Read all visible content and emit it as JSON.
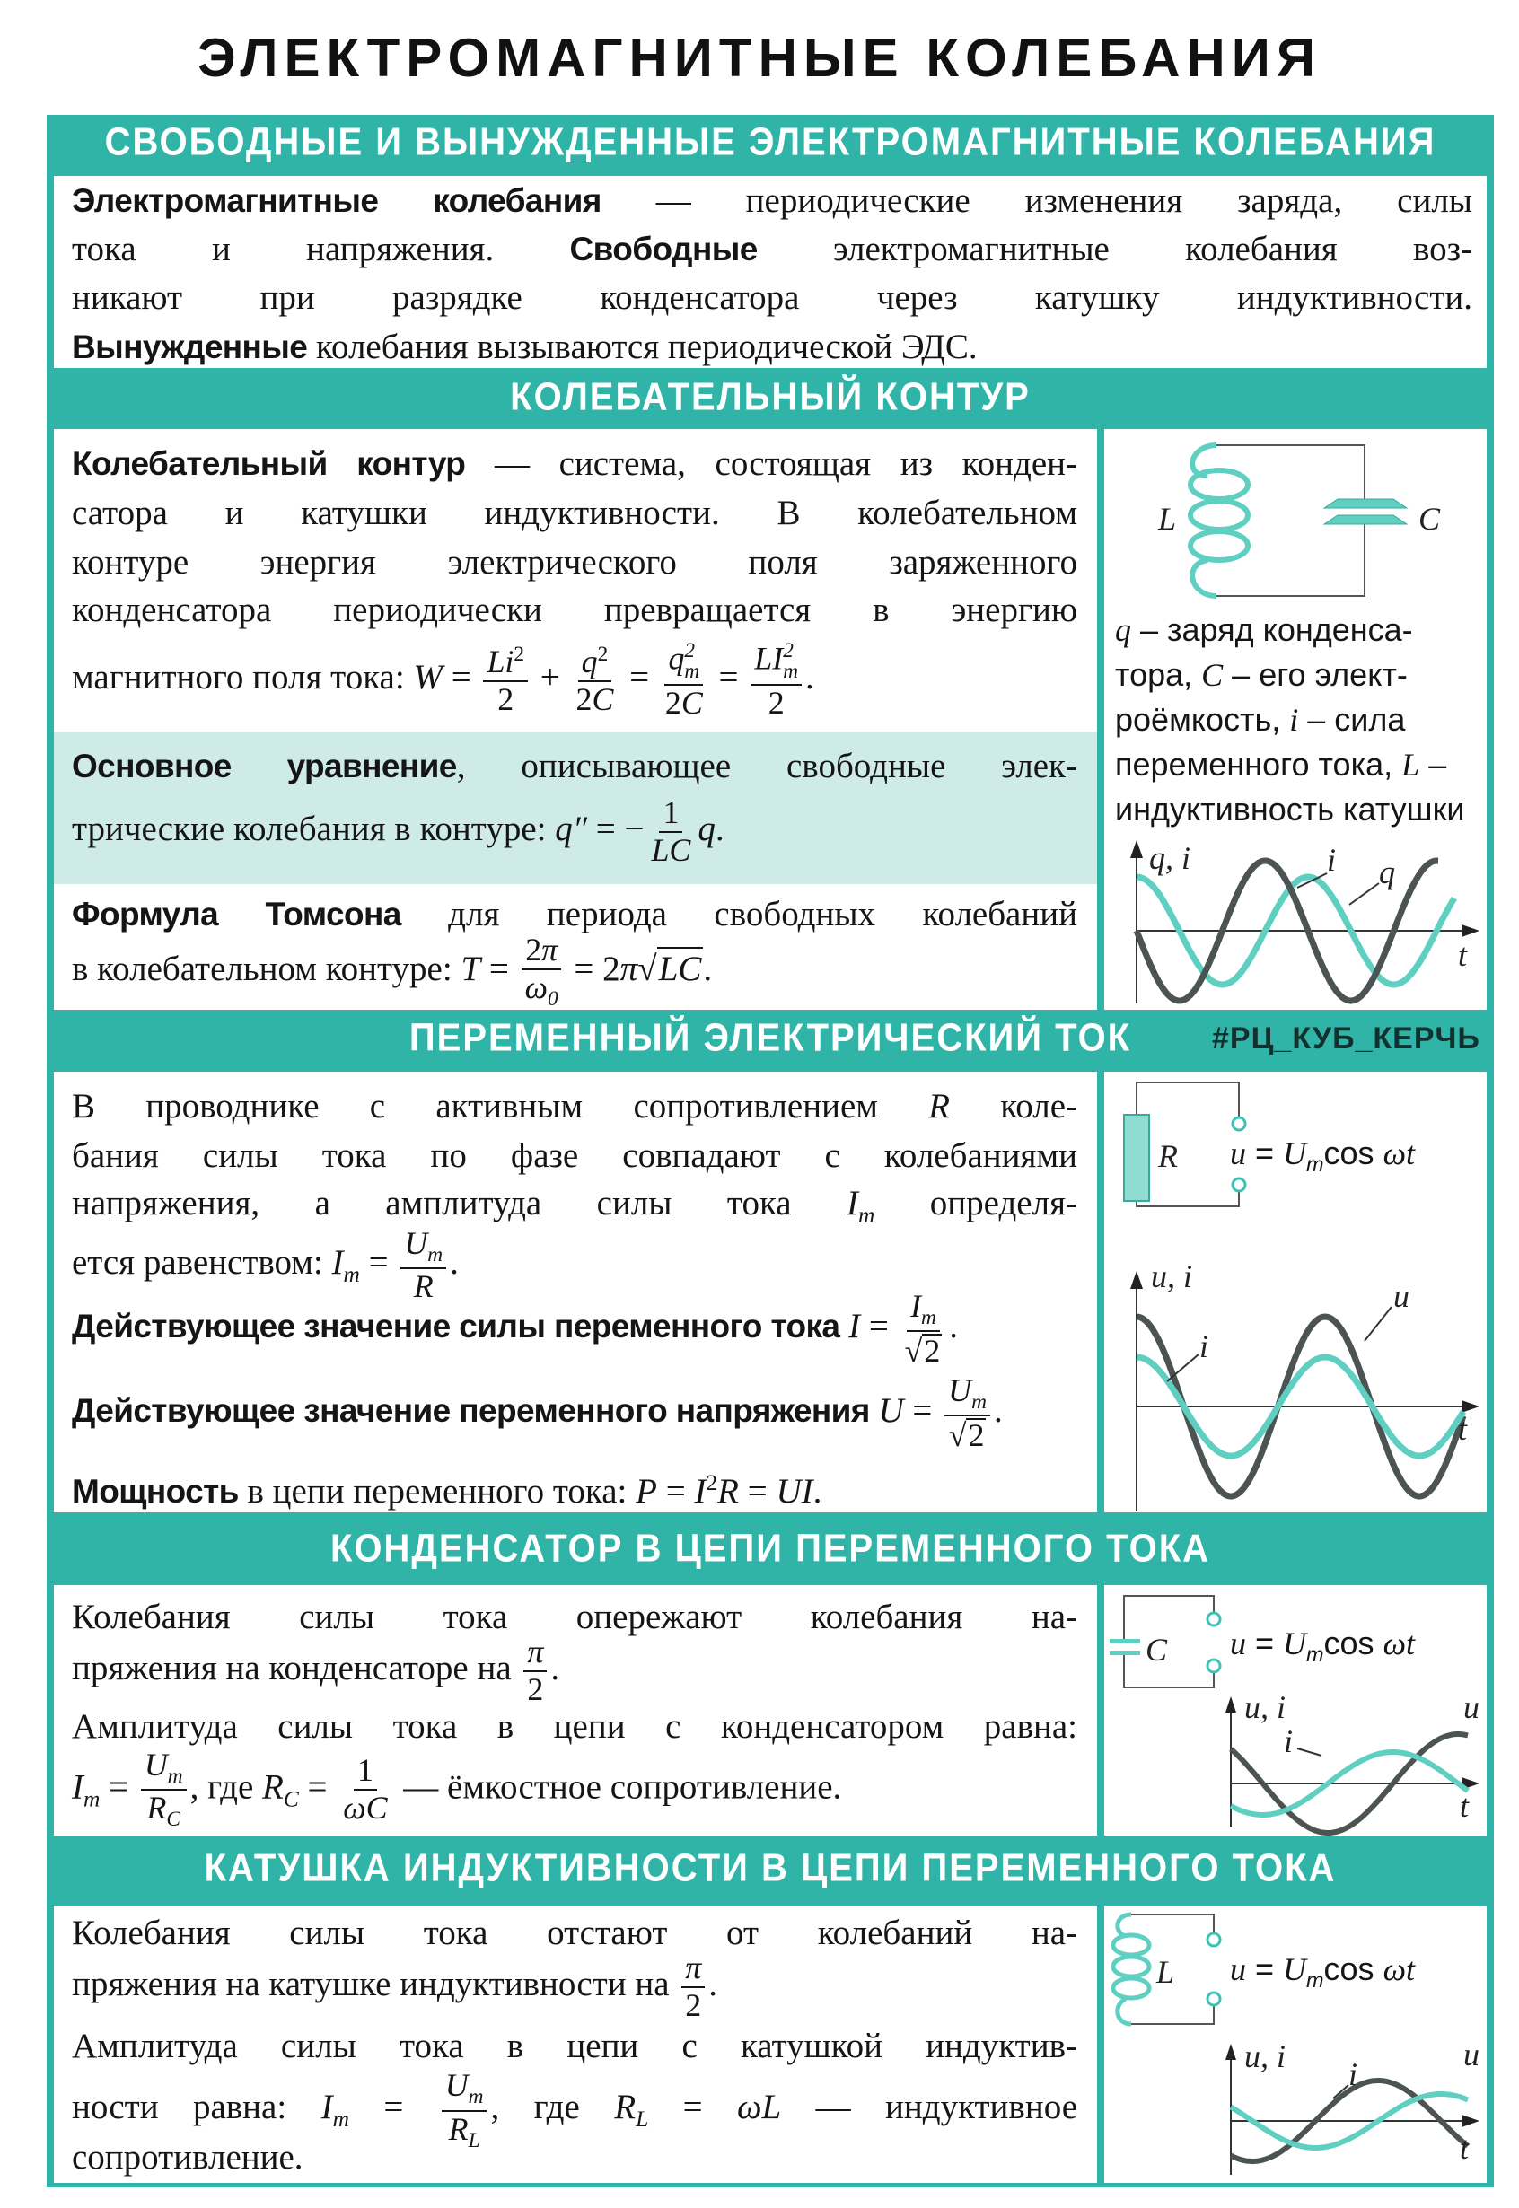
{
  "title": "ЭЛЕКТРОМАГНИТНЫЕ КОЛЕБАНИЯ",
  "colors": {
    "accent": "#2fb4a7",
    "band": "#cfebe7",
    "wave_dark": "#4b5453",
    "wave_teal": "#3dc2b4"
  },
  "s1": {
    "header": "СВОБОДНЫЕ И ВЫНУЖДЕННЫЕ ЭЛЕКТРОМАГНИТНЫЕ КОЛЕБАНИЯ",
    "lines": [
      [
        {
          "b": "Электромагнитные колебания"
        },
        " — периодические изменения заряда, силы"
      ],
      [
        "тока и напряжения. ",
        {
          "b": "Свободные"
        },
        " электромагнитные колебания воз-"
      ],
      [
        "никают при разрядке конденсатора через катушку индуктивности."
      ],
      [
        {
          "b": "Вынужденные"
        },
        " колебания вызываются периодической ЭДС."
      ]
    ]
  },
  "s2": {
    "header": "КОЛЕБАТЕЛЬНЫЙ КОНТУР",
    "lines": [
      [
        {
          "b": "Колебательный контур"
        },
        " — система, состоящая из конден-"
      ],
      [
        "сатора и катушки индуктивности. В колебательном"
      ],
      [
        "контуре энергия электрического поля заряженного"
      ],
      [
        "конденсатора периодически превращается в энергию"
      ],
      [
        "магнитного поля тока: ",
        {
          "m": "W"
        },
        " = ",
        {
          "frac": [
            [
              {
                "m": "Li"
              },
              {
                "sup": "2"
              }
            ],
            [
              "2"
            ]
          ]
        },
        " + ",
        {
          "frac": [
            [
              {
                "m": "q"
              },
              {
                "sup": "2"
              }
            ],
            [
              "2",
              {
                "m": "C"
              }
            ]
          ]
        },
        " = ",
        {
          "frac": [
            [
              {
                "m": "q"
              },
              {
                "ss": [
                  "m",
                  "2"
                ]
              }
            ],
            [
              "2",
              {
                "m": "C"
              }
            ]
          ]
        },
        " = ",
        {
          "frac": [
            [
              {
                "m": "LI"
              },
              {
                "ss": [
                  "m",
                  "2"
                ]
              }
            ],
            [
              "2"
            ]
          ]
        },
        "."
      ],
      [
        {
          "b": "Основное уравнение"
        },
        ", описывающее свободные элек-"
      ],
      [
        "трические колебания в контуре: ",
        {
          "m": "q″"
        },
        " = −",
        {
          "frac": [
            [
              "1"
            ],
            [
              {
                "m": "LC"
              }
            ]
          ]
        },
        {
          "m": "q"
        },
        "."
      ],
      [
        {
          "b": "Формула Томсона"
        },
        " для периода свободных колебаний"
      ],
      [
        "в колебательном контуре: ",
        {
          "m": "T"
        },
        " = ",
        {
          "frac": [
            [
              "2",
              {
                "m": "π"
              }
            ],
            [
              {
                "m": "ω"
              },
              {
                "sub": "0"
              }
            ]
          ]
        },
        " = 2",
        {
          "m": "π"
        },
        {
          "sqrt": [
            {
              "m": "LC"
            }
          ]
        },
        "."
      ]
    ],
    "legend": [
      [
        {
          "m": "q"
        },
        " – заряд конденса-"
      ],
      [
        "тора, ",
        {
          "m": "C"
        },
        " – его элект-"
      ],
      [
        "роёмкость, ",
        {
          "m": "i"
        },
        " – сила"
      ],
      [
        "переменного тока, ",
        {
          "m": "L"
        },
        " –"
      ],
      [
        "индуктивность катушки"
      ]
    ],
    "diagram": {
      "L": "L",
      "C": "C"
    },
    "graph": {
      "ylabel": "q, i",
      "xlabel": "t",
      "series": [
        "i",
        "q"
      ]
    }
  },
  "s3": {
    "header": "ПЕРЕМЕННЫЙ ЭЛЕКТРИЧЕСКИЙ ТОК",
    "tag": "#РЦ_КУБ_КЕРЧЬ",
    "lines": [
      [
        "В проводнике с активным сопротивлением ",
        {
          "m": "R"
        },
        " коле-"
      ],
      [
        "бания силы тока по фазе совпадают с колебаниями"
      ],
      [
        "напряжения, а амплитуда силы тока ",
        {
          "m": "I"
        },
        {
          "sub": "m"
        },
        " определя-"
      ],
      [
        "ется равенством: ",
        {
          "m": "I"
        },
        {
          "sub": "m"
        },
        " = ",
        {
          "frac": [
            [
              {
                "m": "U"
              },
              {
                "sub": "m"
              }
            ],
            [
              {
                "m": "R"
              }
            ]
          ]
        },
        "."
      ],
      [
        {
          "b": "Действующее значение силы переменного тока"
        },
        " ",
        {
          "m": "I"
        },
        " = ",
        {
          "frac": [
            [
              {
                "m": "I"
              },
              {
                "sub": "m"
              }
            ],
            [
              {
                "sqrt": [
                  "2"
                ]
              }
            ]
          ]
        },
        "."
      ],
      [
        {
          "b": "Действующее значение переменного напряжения"
        },
        " ",
        {
          "m": "U"
        },
        " = ",
        {
          "frac": [
            [
              {
                "m": "U"
              },
              {
                "sub": "m"
              }
            ],
            [
              {
                "sqrt": [
                  "2"
                ]
              }
            ]
          ]
        },
        "."
      ],
      [
        {
          "b": "Мощность"
        },
        " в цепи переменного тока: ",
        {
          "m": "P"
        },
        " = ",
        {
          "m": "I"
        },
        {
          "sup": "2"
        },
        {
          "m": "R"
        },
        " = ",
        {
          "m": "UI"
        },
        "."
      ]
    ],
    "diagram": {
      "R": "R",
      "formula": [
        {
          "m": "u"
        },
        " = ",
        {
          "m": "U"
        },
        {
          "sub": "m"
        },
        "cos ",
        {
          "m": "ωt"
        }
      ]
    },
    "graph": {
      "ylabel": "u, i",
      "xlabel": "t",
      "series": [
        "u",
        "i"
      ]
    }
  },
  "s4": {
    "header": "КОНДЕНСАТОР В ЦЕПИ ПЕРЕМЕННОГО ТОКА",
    "lines": [
      [
        "Колебания силы тока опережают колебания на-"
      ],
      [
        "пряжения на конденсаторе на ",
        {
          "frac": [
            [
              {
                "m": "π"
              }
            ],
            [
              "2"
            ]
          ]
        },
        "."
      ],
      [
        "Амплитуда силы тока в цепи с конденсатором равна:"
      ],
      [
        {
          "m": "I"
        },
        {
          "sub": "m"
        },
        " = ",
        {
          "frac": [
            [
              {
                "m": "U"
              },
              {
                "sub": "m"
              }
            ],
            [
              {
                "m": "R"
              },
              {
                "sub": "C"
              }
            ]
          ]
        },
        ", где ",
        {
          "m": "R"
        },
        {
          "sub": "C"
        },
        " = ",
        {
          "frac": [
            [
              "1"
            ],
            [
              {
                "m": "ωC"
              }
            ]
          ]
        },
        " — ёмкостное сопротивление."
      ]
    ],
    "diagram": {
      "C": "C",
      "formula": [
        {
          "m": "u"
        },
        " = ",
        {
          "m": "U"
        },
        {
          "sub": "m"
        },
        "cos ",
        {
          "m": "ωt"
        }
      ]
    },
    "graph": {
      "ylabel": "u, i",
      "xlabel": "t",
      "series": [
        "u",
        "i"
      ]
    }
  },
  "s5": {
    "header": "КАТУШКА ИНДУКТИВНОСТИ В ЦЕПИ ПЕРЕМЕННОГО ТОКА",
    "lines": [
      [
        "Колебания силы тока отстают от колебаний на-"
      ],
      [
        "пряжения на катушке индуктивности на ",
        {
          "frac": [
            [
              {
                "m": "π"
              }
            ],
            [
              "2"
            ]
          ]
        },
        "."
      ],
      [
        "Амплитуда силы тока в цепи с катушкой индуктив-"
      ],
      [
        "ности равна: ",
        {
          "m": "I"
        },
        {
          "sub": "m"
        },
        " = ",
        {
          "frac": [
            [
              {
                "m": "U"
              },
              {
                "sub": "m"
              }
            ],
            [
              {
                "m": "R"
              },
              {
                "sub": "L"
              }
            ]
          ]
        },
        ", где ",
        {
          "m": "R"
        },
        {
          "sub": "L"
        },
        " = ",
        {
          "m": "ωL"
        },
        " — индуктивное"
      ],
      [
        "сопротивление."
      ]
    ],
    "diagram": {
      "L": "L",
      "formula": [
        {
          "m": "u"
        },
        " = ",
        {
          "m": "U"
        },
        {
          "sub": "m"
        },
        "cos ",
        {
          "m": "ωt"
        }
      ]
    },
    "graph": {
      "ylabel": "u, i",
      "xlabel": "t",
      "series": [
        "u",
        "i"
      ]
    }
  }
}
